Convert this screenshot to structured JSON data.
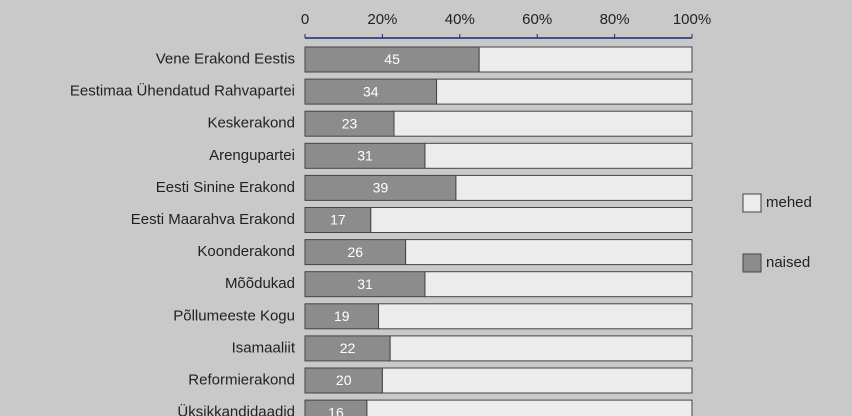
{
  "chart_data": {
    "type": "stacked-bar-horizontal",
    "categories": [
      "Vene Erakond Eestis",
      "Eestimaa Ühendatud Rahvapartei",
      "Keskerakond",
      "Arengupartei",
      "Eesti Sinine Erakond",
      "Eesti Maarahva Erakond",
      "Koonderakond",
      "Mõõdukad",
      "Põllumeeste Kogu",
      "Isamaaliit",
      "Reformierakond",
      "Üksikkandidaadid"
    ],
    "series": [
      {
        "name": "naised",
        "color": "#8c8c8c",
        "values": [
          45,
          34,
          23,
          31,
          39,
          17,
          26,
          31,
          19,
          22,
          20,
          16
        ]
      },
      {
        "name": "mehed",
        "color": "#ececec",
        "values": [
          55,
          66,
          77,
          69,
          61,
          83,
          74,
          69,
          81,
          78,
          80,
          84
        ]
      }
    ],
    "xlim": [
      0,
      100
    ],
    "xticks": [
      0,
      {
        "value": 20,
        "label": "20%"
      },
      {
        "value": 40,
        "label": "40%"
      },
      {
        "value": 60,
        "label": "60%"
      },
      {
        "value": 80,
        "label": "80%"
      },
      {
        "value": 100,
        "label": "100%"
      }
    ],
    "legend": "right"
  }
}
